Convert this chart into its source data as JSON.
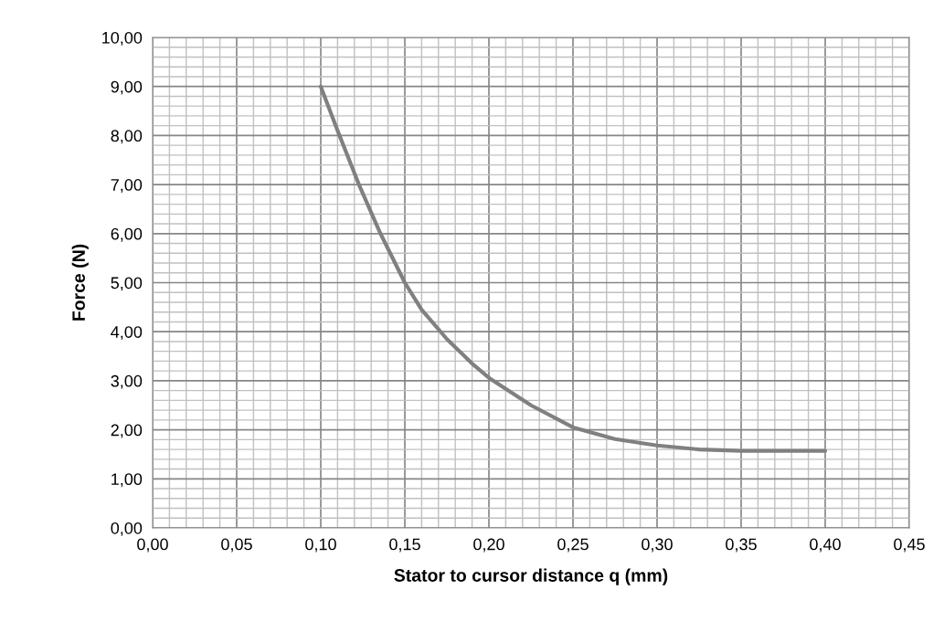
{
  "chart_data": {
    "type": "line",
    "xlabel": "Stator to cursor distance q (mm)",
    "ylabel": "Force (N)",
    "x": [
      0.1,
      0.11,
      0.1227,
      0.1355,
      0.15,
      0.16,
      0.175,
      0.19,
      0.2,
      0.225,
      0.25,
      0.275,
      0.3,
      0.325,
      0.35,
      0.375,
      0.4
    ],
    "series": [
      {
        "color": "#808080",
        "values": [
          9.0,
          8.1,
          7.0,
          6.0,
          5.0,
          4.45,
          3.85,
          3.35,
          3.06,
          2.5,
          2.05,
          1.81,
          1.68,
          1.6,
          1.57,
          1.57,
          1.57
        ]
      }
    ],
    "xlim": [
      0,
      0.45
    ],
    "xticks": [
      {
        "value": 0,
        "label": "0,00"
      },
      {
        "value": 0.05,
        "label": "0,05"
      },
      {
        "value": 0.1,
        "label": "0,10"
      },
      {
        "value": 0.15,
        "label": "0,15"
      },
      {
        "value": 0.2,
        "label": "0,20"
      },
      {
        "value": 0.25,
        "label": "0,25"
      },
      {
        "value": 0.3,
        "label": "0,30"
      },
      {
        "value": 0.35,
        "label": "0,35"
      },
      {
        "value": 0.4,
        "label": "0,40"
      },
      {
        "value": 0.45,
        "label": "0,45"
      }
    ],
    "ylim": [
      0,
      10
    ],
    "yticks": [
      {
        "value": 0,
        "label": "0,00"
      },
      {
        "value": 1,
        "label": "1,00"
      },
      {
        "value": 2,
        "label": "2,00"
      },
      {
        "value": 3,
        "label": "3,00"
      },
      {
        "value": 4,
        "label": "4,00"
      },
      {
        "value": 5,
        "label": "5,00"
      },
      {
        "value": 6,
        "label": "6,00"
      },
      {
        "value": 7,
        "label": "7,00"
      },
      {
        "value": 8,
        "label": "8,00"
      },
      {
        "value": 9,
        "label": "9,00"
      },
      {
        "value": 10,
        "label": "10,00"
      }
    ],
    "grid": true,
    "marker": "none",
    "line_style": "solid"
  }
}
